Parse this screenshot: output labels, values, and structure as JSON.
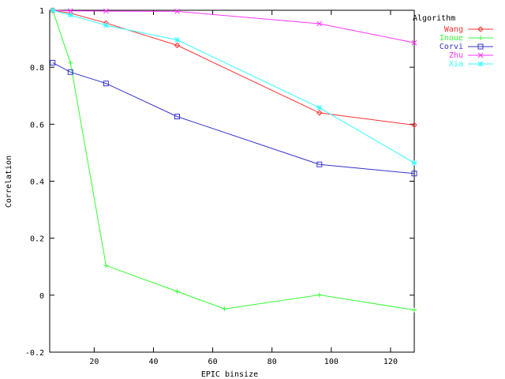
{
  "chart_data": {
    "type": "line",
    "title": "",
    "xlabel": "EPIC binsize",
    "ylabel": "Correlation",
    "xlim": [
      5,
      128
    ],
    "ylim": [
      -0.2,
      1
    ],
    "x_ticks": [
      20,
      40,
      60,
      80,
      100,
      120
    ],
    "x_tick_labels": [
      "20",
      "40",
      "60",
      "80",
      "100",
      "120"
    ],
    "y_ticks": [
      -0.2,
      0,
      0.2,
      0.4,
      0.6,
      0.8,
      1
    ],
    "y_tick_labels": [
      "-0.2",
      "0",
      "0.2",
      "0.4",
      "0.6",
      "0.8",
      "1"
    ],
    "grid": false,
    "legend_title": "Algorithm",
    "legend_position": "top-right",
    "series": [
      {
        "name": "Wang",
        "color": "#ff3333",
        "marker": "diamond",
        "points": [
          [
            6,
            1.0
          ],
          [
            12,
            0.99
          ],
          [
            24,
            0.955
          ],
          [
            48,
            0.877
          ],
          [
            96,
            0.64
          ],
          [
            128,
            0.597
          ]
        ]
      },
      {
        "name": "Inoue",
        "color": "#33ff33",
        "marker": "plus",
        "points": [
          [
            6,
            1.0
          ],
          [
            12,
            0.815
          ],
          [
            24,
            0.104
          ],
          [
            48,
            0.013
          ],
          [
            64,
            -0.048
          ],
          [
            96,
            0.001
          ],
          [
            128,
            -0.052
          ]
        ]
      },
      {
        "name": "Corvi",
        "color": "#3333cc",
        "marker": "square",
        "points": [
          [
            6,
            0.816
          ],
          [
            12,
            0.783
          ],
          [
            24,
            0.743
          ],
          [
            48,
            0.627
          ],
          [
            96,
            0.459
          ],
          [
            128,
            0.427
          ]
        ]
      },
      {
        "name": "Zhu",
        "color": "#ff33ff",
        "marker": "x",
        "points": [
          [
            6,
            1.0
          ],
          [
            12,
            0.998
          ],
          [
            24,
            0.997
          ],
          [
            48,
            0.996
          ],
          [
            96,
            0.953
          ],
          [
            128,
            0.886
          ]
        ]
      },
      {
        "name": "Xia",
        "color": "#33ffff",
        "marker": "star",
        "points": [
          [
            6,
            1.0
          ],
          [
            12,
            0.983
          ],
          [
            24,
            0.947
          ],
          [
            48,
            0.896
          ],
          [
            96,
            0.658
          ],
          [
            128,
            0.464
          ]
        ]
      }
    ]
  }
}
